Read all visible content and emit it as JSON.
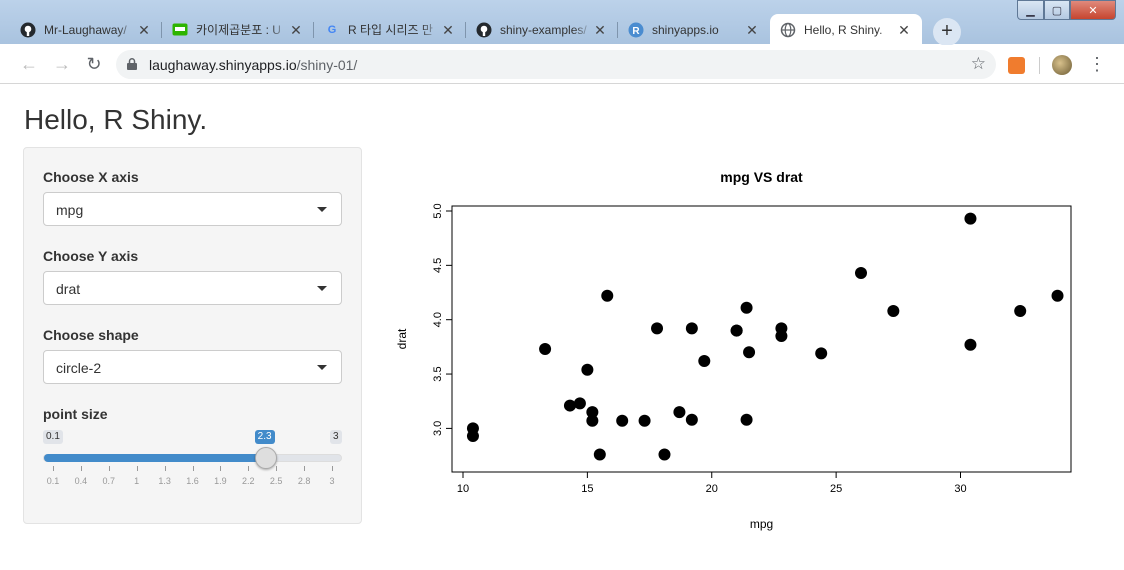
{
  "browser": {
    "tabs": [
      {
        "title": "Mr-Laughaway/",
        "icon": "github-icon"
      },
      {
        "title": "카이제곱분포 : U",
        "icon": "blog-icon"
      },
      {
        "title": "R 타입 시리즈 만",
        "icon": "google-icon"
      },
      {
        "title": "shiny-examples/",
        "icon": "github-icon"
      },
      {
        "title": "shinyapps.io",
        "icon": "rstudio-icon"
      },
      {
        "title": "Hello, R Shiny.",
        "icon": "globe-icon",
        "active": true
      }
    ],
    "url_host": "laughaway.shinyapps.io",
    "url_path": "/shiny-01/"
  },
  "app": {
    "title": "Hello, R Shiny.",
    "x_axis": {
      "label": "Choose X axis",
      "value": "mpg"
    },
    "y_axis": {
      "label": "Choose Y axis",
      "value": "drat"
    },
    "shape": {
      "label": "Choose shape",
      "value": "circle-2"
    },
    "point_size": {
      "label": "point size",
      "min": 0.1,
      "max": 3,
      "value": 2.3,
      "min_label": "0.1",
      "max_label": "3",
      "value_label": "2.3",
      "ticks": [
        "0.1",
        "0.4",
        "0.7",
        "1",
        "1.3",
        "1.6",
        "1.9",
        "2.2",
        "2.5",
        "2.8",
        "3"
      ]
    },
    "accent_color": "#428bca"
  },
  "chart_data": {
    "type": "scatter",
    "title": "mpg  VS  drat",
    "xlabel": "mpg",
    "ylabel": "drat",
    "xlim": [
      10,
      34
    ],
    "ylim": [
      2.7,
      5.0
    ],
    "xticks": [
      "10",
      "15",
      "20",
      "25",
      "30"
    ],
    "yticks": [
      "3.0",
      "3.5",
      "4.0",
      "4.5",
      "5.0"
    ],
    "point_color": "#000000",
    "points": [
      [
        21.0,
        3.9
      ],
      [
        21.0,
        3.9
      ],
      [
        22.8,
        3.85
      ],
      [
        21.4,
        3.08
      ],
      [
        18.7,
        3.15
      ],
      [
        18.1,
        2.76
      ],
      [
        14.3,
        3.21
      ],
      [
        24.4,
        3.69
      ],
      [
        22.8,
        3.92
      ],
      [
        19.2,
        3.92
      ],
      [
        17.8,
        3.92
      ],
      [
        16.4,
        3.07
      ],
      [
        17.3,
        3.07
      ],
      [
        15.2,
        3.07
      ],
      [
        10.4,
        2.93
      ],
      [
        10.4,
        3.0
      ],
      [
        14.7,
        3.23
      ],
      [
        32.4,
        4.08
      ],
      [
        30.4,
        4.93
      ],
      [
        33.9,
        4.22
      ],
      [
        21.5,
        3.7
      ],
      [
        15.5,
        2.76
      ],
      [
        15.2,
        3.15
      ],
      [
        13.3,
        3.73
      ],
      [
        19.2,
        3.08
      ],
      [
        27.3,
        4.08
      ],
      [
        26.0,
        4.43
      ],
      [
        30.4,
        3.77
      ],
      [
        15.8,
        4.22
      ],
      [
        19.7,
        3.62
      ],
      [
        15.0,
        3.54
      ],
      [
        21.4,
        4.11
      ]
    ]
  }
}
